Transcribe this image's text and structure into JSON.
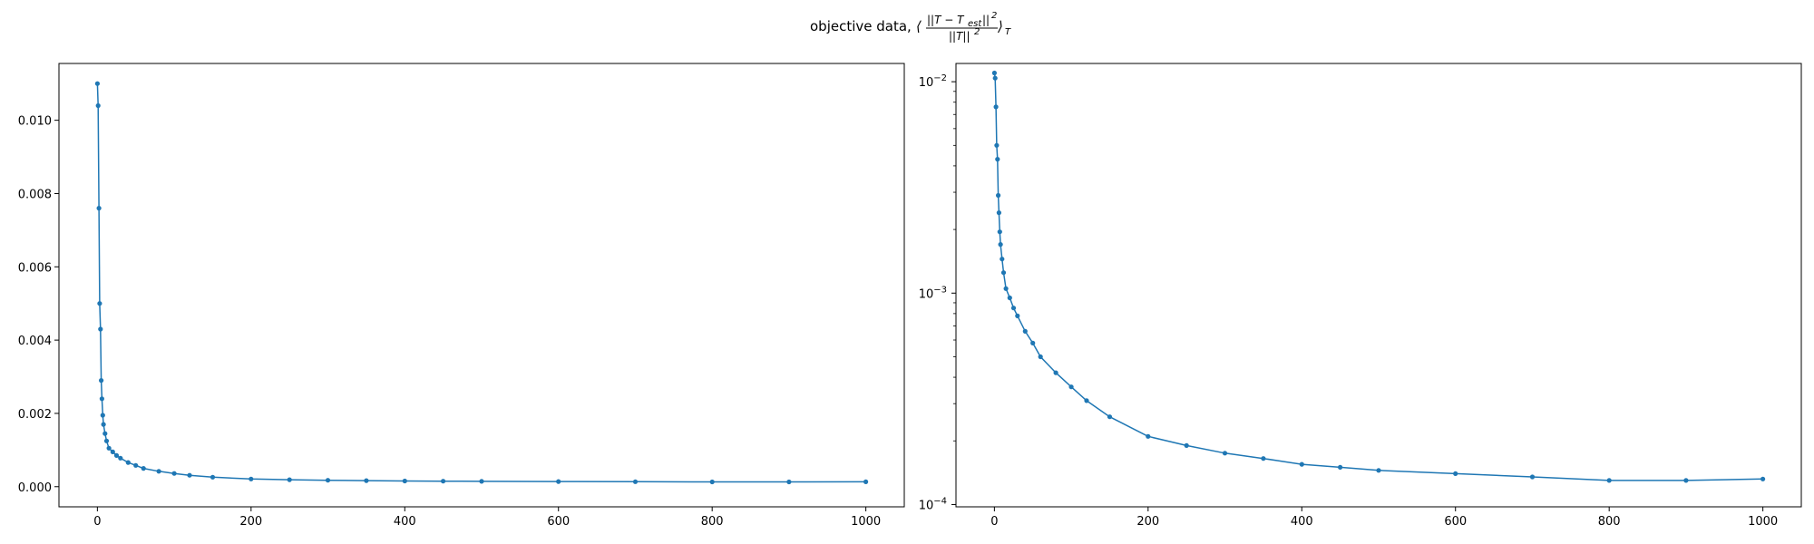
{
  "figure": {
    "title": {
      "text": "objective data,",
      "formula_numerator": "||T − T",
      "formula_numerator_sub": "est",
      "formula_numerator_end": "||",
      "formula_denominator": "||T||",
      "formula_power": "2",
      "formula_open": "⟨",
      "formula_close": "⟩",
      "formula_outer_sub": "T"
    }
  },
  "chart_data": [
    {
      "type": "line",
      "marker": "dot",
      "color": "#1f77b4",
      "title": "",
      "xlabel": "",
      "ylabel": "",
      "yscale": "linear",
      "xlim": [
        -50,
        1050
      ],
      "ylim": [
        -0.00055,
        0.01155
      ],
      "grid": false,
      "x_ticks": [
        0,
        200,
        400,
        600,
        800,
        1000
      ],
      "x_tick_labels": [
        "0",
        "200",
        "400",
        "600",
        "800",
        "1000"
      ],
      "y_ticks": [
        0.0,
        0.002,
        0.004,
        0.006,
        0.008,
        0.01
      ],
      "y_tick_labels": [
        "0.000",
        "0.002",
        "0.004",
        "0.006",
        "0.008",
        "0.010"
      ],
      "series": [
        {
          "x": [
            0,
            1,
            2,
            3,
            4,
            5,
            6,
            7,
            8,
            10,
            12,
            15,
            20,
            25,
            30,
            40,
            50,
            60,
            80,
            100,
            120,
            150,
            200,
            250,
            300,
            350,
            400,
            450,
            500,
            600,
            700,
            800,
            900,
            1000
          ],
          "y": [
            0.011,
            0.0104,
            0.0076,
            0.005,
            0.0043,
            0.0029,
            0.0024,
            0.00195,
            0.0017,
            0.00145,
            0.00125,
            0.00105,
            0.00095,
            0.00085,
            0.00078,
            0.00066,
            0.00058,
            0.0005,
            0.00042,
            0.00036,
            0.00031,
            0.00026,
            0.00021,
            0.00019,
            0.000175,
            0.000165,
            0.000155,
            0.00015,
            0.000145,
            0.00014,
            0.000135,
            0.00013,
            0.00013,
            0.000132
          ]
        }
      ]
    },
    {
      "type": "line",
      "marker": "dot",
      "color": "#1f77b4",
      "title": "",
      "xlabel": "",
      "ylabel": "",
      "yscale": "log",
      "xlim": [
        -50,
        1050
      ],
      "ylim": [
        9.75e-05,
        0.0122
      ],
      "grid": false,
      "x_ticks": [
        0,
        200,
        400,
        600,
        800,
        1000
      ],
      "x_tick_labels": [
        "0",
        "200",
        "400",
        "600",
        "800",
        "1000"
      ],
      "y_ticks": [
        0.0001,
        0.001,
        0.01
      ],
      "y_tick_base": [
        "10",
        "10",
        "10"
      ],
      "y_tick_exp": [
        "−4",
        "−3",
        "−2"
      ],
      "series": [
        {
          "x": [
            0,
            1,
            2,
            3,
            4,
            5,
            6,
            7,
            8,
            10,
            12,
            15,
            20,
            25,
            30,
            40,
            50,
            60,
            80,
            100,
            120,
            150,
            200,
            250,
            300,
            350,
            400,
            450,
            500,
            600,
            700,
            800,
            900,
            1000
          ],
          "y": [
            0.011,
            0.0104,
            0.0076,
            0.005,
            0.0043,
            0.0029,
            0.0024,
            0.00195,
            0.0017,
            0.00145,
            0.00125,
            0.00105,
            0.00095,
            0.00085,
            0.00078,
            0.00066,
            0.00058,
            0.0005,
            0.00042,
            0.00036,
            0.00031,
            0.00026,
            0.00021,
            0.00019,
            0.000175,
            0.000165,
            0.000155,
            0.00015,
            0.000145,
            0.00014,
            0.000135,
            0.00013,
            0.00013,
            0.000132
          ]
        }
      ]
    }
  ]
}
